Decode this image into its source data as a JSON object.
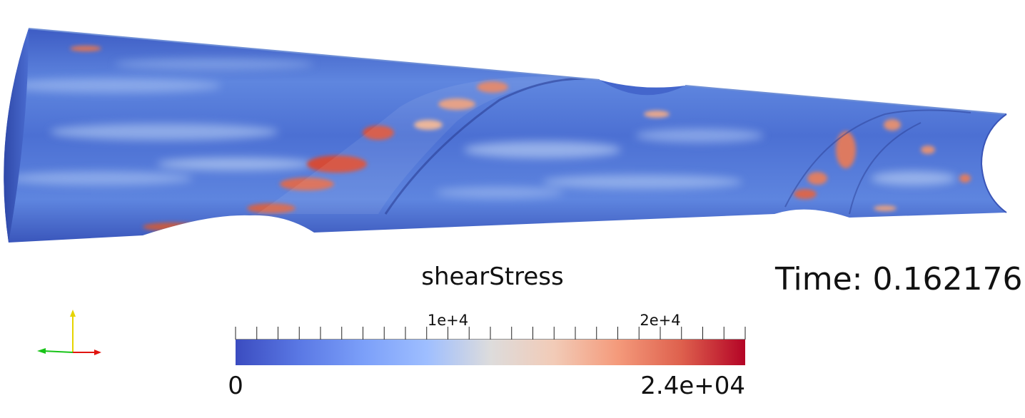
{
  "scalar_bar": {
    "title": "shearStress",
    "min_label": "0",
    "max_label": "2.4e+04",
    "major_tick_labels": [
      "1e+4",
      "2e+4"
    ],
    "major_tick_values": [
      10000,
      20000
    ],
    "range": [
      0,
      24000
    ],
    "colormap": "cool-to-warm",
    "color_low": "#3b4cc0",
    "color_mid": "#dddddd",
    "color_high": "#b40426"
  },
  "time": {
    "label": "Time:",
    "value": "0.162176"
  },
  "scene": {
    "description_icon": "tapered-tube-surface"
  },
  "axes": {
    "x_color": "#e0140f",
    "y_color": "#e6d400",
    "z_color": "#18c418"
  }
}
